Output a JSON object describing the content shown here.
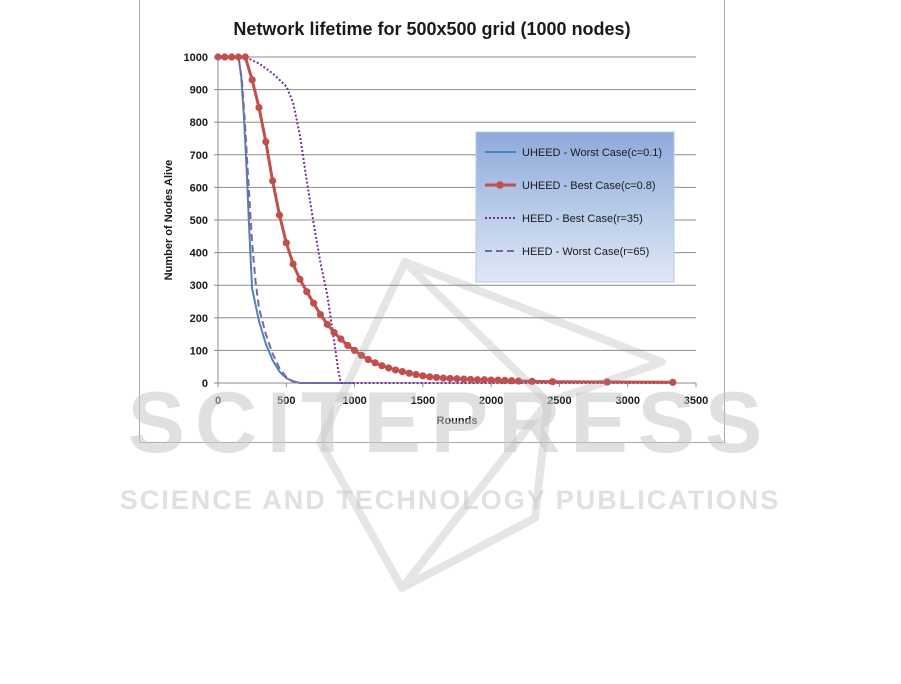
{
  "chart_data": {
    "type": "line",
    "title": "Network lifetime for 500x500 grid (1000 nodes)",
    "xlabel": "Rounds",
    "ylabel": "Number of Nodes Alive",
    "xlim": [
      0,
      3500
    ],
    "ylim": [
      0,
      1000
    ],
    "xticks": [
      0,
      500,
      1000,
      1500,
      2000,
      2500,
      3000,
      3500
    ],
    "yticks": [
      0,
      100,
      200,
      300,
      400,
      500,
      600,
      700,
      800,
      900,
      1000
    ],
    "grid": "horizontal",
    "legend_position": "right",
    "series": [
      {
        "name": "UHEED - Worst Case(c=0.1)",
        "color": "#4f81bd",
        "style": "solid",
        "markers": false,
        "x": [
          0,
          150,
          170,
          190,
          210,
          230,
          250,
          300,
          350,
          400,
          450,
          500,
          550,
          600,
          700,
          800,
          900,
          1000
        ],
        "y": [
          1000,
          1000,
          940,
          820,
          650,
          460,
          290,
          190,
          120,
          70,
          35,
          15,
          5,
          0,
          0,
          0,
          0,
          0
        ]
      },
      {
        "name": "UHEED - Best Case(c=0.8)",
        "color": "#c0504d",
        "style": "solid",
        "markers": true,
        "x": [
          0,
          50,
          100,
          150,
          200,
          250,
          300,
          350,
          400,
          450,
          500,
          550,
          600,
          650,
          700,
          750,
          800,
          850,
          900,
          950,
          1000,
          1050,
          1100,
          1150,
          1200,
          1250,
          1300,
          1350,
          1400,
          1450,
          1500,
          1550,
          1600,
          1650,
          1700,
          1750,
          1800,
          1850,
          1900,
          1950,
          2000,
          2050,
          2100,
          2150,
          2200,
          2300,
          2450,
          2850,
          3330
        ],
        "y": [
          1000,
          1000,
          1000,
          1000,
          1000,
          930,
          845,
          740,
          620,
          515,
          430,
          365,
          318,
          280,
          245,
          210,
          180,
          155,
          135,
          115,
          100,
          85,
          72,
          62,
          53,
          46,
          40,
          35,
          30,
          26,
          22,
          19,
          17,
          15,
          14,
          13,
          12,
          11,
          10,
          10,
          9,
          9,
          8,
          7,
          6,
          5,
          4,
          3,
          2
        ]
      },
      {
        "name": "HEED - Best Case(r=35)",
        "color": "#7030a0",
        "style": "dotted",
        "markers": false,
        "x": [
          0,
          200,
          300,
          400,
          500,
          550,
          600,
          650,
          700,
          750,
          800,
          850,
          880,
          900,
          950,
          1200,
          1500,
          2000,
          2500,
          3000,
          3330
        ],
        "y": [
          1000,
          1000,
          980,
          950,
          910,
          860,
          760,
          620,
          490,
          370,
          270,
          130,
          40,
          0,
          0,
          0,
          0,
          0,
          0,
          0,
          0
        ]
      },
      {
        "name": "HEED - Worst Case(r=65)",
        "color": "#8064a2",
        "style": "dashed",
        "markers": false,
        "x": [
          0,
          150,
          175,
          200,
          225,
          250,
          275,
          300,
          350,
          400,
          450,
          500,
          550,
          600,
          700,
          800,
          1000
        ],
        "y": [
          1000,
          1000,
          930,
          780,
          600,
          430,
          310,
          230,
          150,
          90,
          45,
          18,
          5,
          0,
          0,
          0,
          0
        ]
      }
    ]
  },
  "watermark": {
    "brand": "SCITEPRESS",
    "tagline": "SCIENCE AND TECHNOLOGY PUBLICATIONS"
  }
}
